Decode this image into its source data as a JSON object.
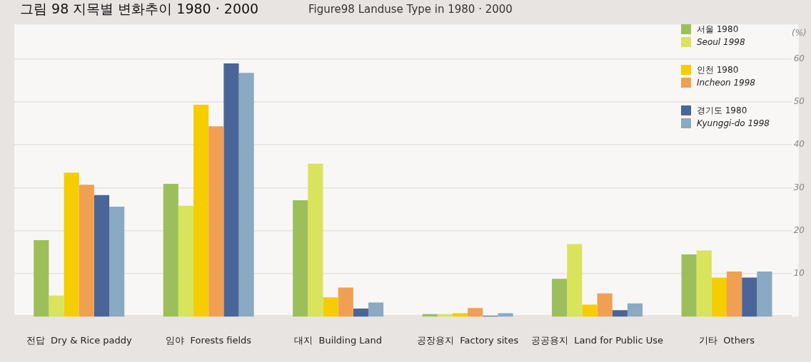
{
  "chart_data": {
    "type": "bar",
    "title": "그림 98  지목별 변화추이 1980 · 2000",
    "subtitle": "Figure98  Landuse Type in 1980 · 2000",
    "ylabel": "(%)",
    "categories": [
      "전답  Dry & Rice paddy",
      "임야  Forests fields",
      "대지  Building Land",
      "공장용지  Factory sites",
      "공공용지  Land for Public Use",
      "기타  Others"
    ],
    "series": [
      {
        "name": "서울 1980",
        "color": "#9dbf5b",
        "values": [
          17.8,
          30.9,
          27.1,
          0.6,
          8.8,
          14.5
        ]
      },
      {
        "name": "Seoul 1998",
        "color": "#d8e45c",
        "values": [
          4.9,
          25.8,
          35.6,
          0.6,
          16.9,
          15.4
        ]
      },
      {
        "name": "인천 1980",
        "color": "#f5cd00",
        "values": [
          33.5,
          49.3,
          4.5,
          0.8,
          2.8,
          9.1
        ]
      },
      {
        "name": "Incheon 1998",
        "color": "#f0a053",
        "values": [
          30.7,
          44.3,
          6.8,
          2.0,
          5.4,
          10.5
        ]
      },
      {
        "name": "경기도 1980",
        "color": "#4a6597",
        "values": [
          28.3,
          58.9,
          1.9,
          0.2,
          1.5,
          9.1
        ]
      },
      {
        "name": "Kyunggi-do 1998",
        "color": "#89aac2",
        "values": [
          25.6,
          56.7,
          3.3,
          0.8,
          3.1,
          10.5
        ]
      }
    ],
    "ylim": [
      0,
      68
    ],
    "yticks": [
      10,
      20,
      30,
      40,
      50,
      60
    ],
    "grid": "y",
    "legend": "top right"
  }
}
